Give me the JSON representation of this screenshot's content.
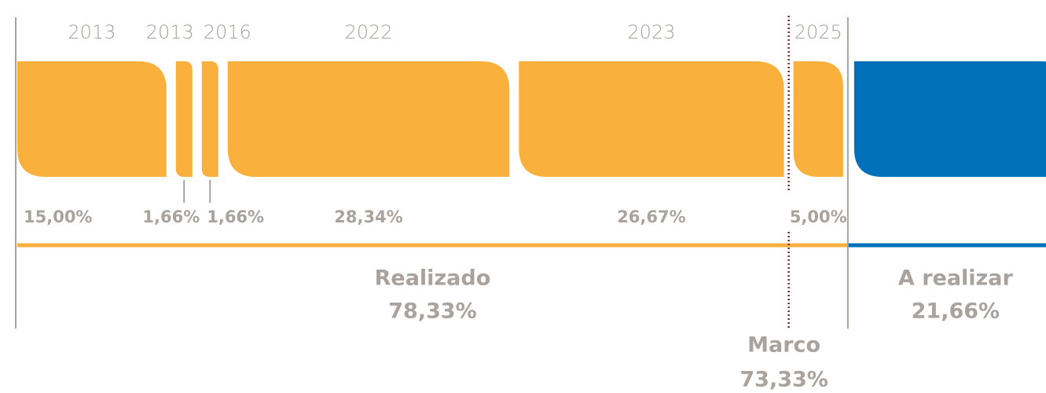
{
  "chart_data": {
    "type": "progress",
    "categories": [
      "2013",
      "2013",
      "2016",
      "2022",
      "2023",
      "2025"
    ],
    "values": [
      15,
      1.66,
      1.66,
      28.34,
      26.67,
      5
    ],
    "value_labels": [
      "15,00%",
      "1,66%",
      "1,66%",
      "28,34%",
      "26,67%",
      "5,00%"
    ],
    "color": "#f9b03c",
    "done": {
      "name": "Realizado",
      "value": 78.33,
      "value_label": "78,33%",
      "color": "#f9b03c"
    },
    "remaining": {
      "name": "A realizar",
      "value": 21.66,
      "value_label": "21,66%",
      "color": "#0070bb"
    },
    "marker": {
      "name": "Marco",
      "value": 73.33,
      "value_label": "73,33%",
      "color": "#7a2e2e"
    }
  }
}
